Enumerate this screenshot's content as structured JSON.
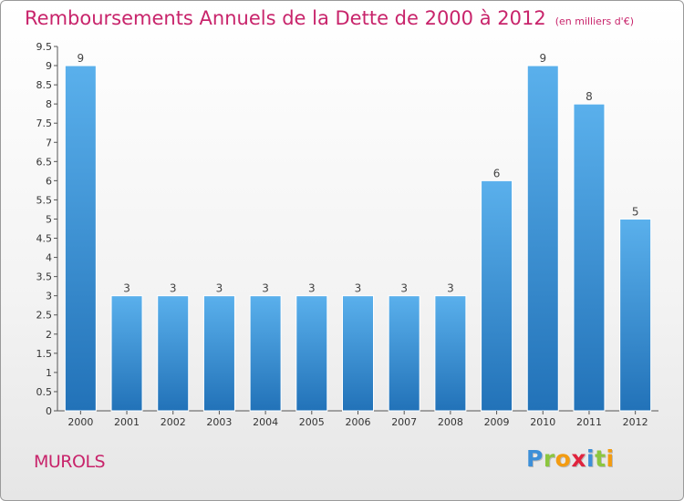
{
  "title": "Remboursements Annuels de la Dette de 2000 à 2012",
  "unit": "(en milliers d'€)",
  "commune": "MUROLS",
  "logo": {
    "letters": [
      {
        "ch": "P",
        "color": "#3d8fd8"
      },
      {
        "ch": "r",
        "color": "#8cc63f"
      },
      {
        "ch": "o",
        "color": "#f39c12"
      },
      {
        "ch": "x",
        "color": "#e0243e"
      },
      {
        "ch": "i",
        "color": "#3d8fd8"
      },
      {
        "ch": "t",
        "color": "#8cc63f"
      },
      {
        "ch": "i",
        "color": "#f39c12"
      }
    ]
  },
  "colors": {
    "accent": "#c8246b",
    "bar_top": "#5ab0ec",
    "bar_bottom": "#2272b8"
  },
  "chart_data": {
    "type": "bar",
    "categories": [
      "2000",
      "2001",
      "2002",
      "2003",
      "2004",
      "2005",
      "2006",
      "2007",
      "2008",
      "2009",
      "2010",
      "2011",
      "2012"
    ],
    "values": [
      9,
      3,
      3,
      3,
      3,
      3,
      3,
      3,
      3,
      6,
      9,
      8,
      5
    ],
    "ylim": [
      0,
      9.5
    ],
    "yticks": [
      "0",
      "0.5",
      "1",
      "1.5",
      "2",
      "2.5",
      "3",
      "3.5",
      "4",
      "4.5",
      "5",
      "5.5",
      "6",
      "6.5",
      "7",
      "7.5",
      "8",
      "8.5",
      "9",
      "9.5"
    ],
    "grid": false,
    "data_labels": true
  }
}
